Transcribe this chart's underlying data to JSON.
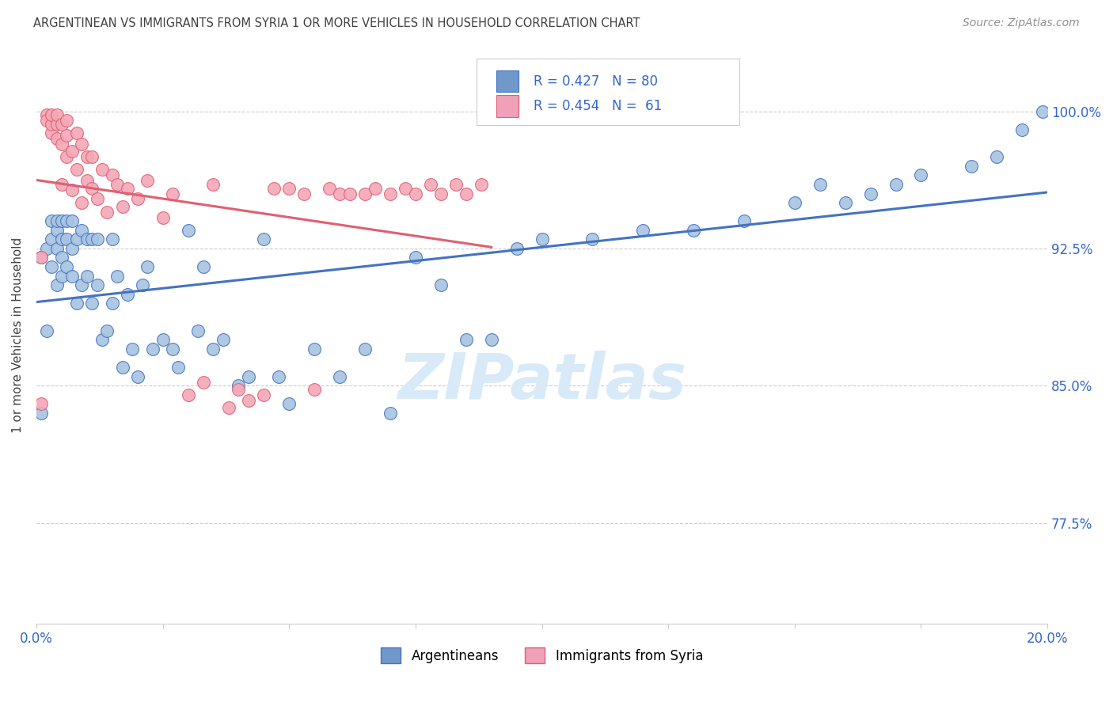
{
  "title": "ARGENTINEAN VS IMMIGRANTS FROM SYRIA 1 OR MORE VEHICLES IN HOUSEHOLD CORRELATION CHART",
  "source": "Source: ZipAtlas.com",
  "ylabel": "1 or more Vehicles in Household",
  "ytick_labels": [
    "100.0%",
    "92.5%",
    "85.0%",
    "77.5%"
  ],
  "ytick_values": [
    1.0,
    0.925,
    0.85,
    0.775
  ],
  "legend_blue_label": "Argentineans",
  "legend_pink_label": "Immigrants from Syria",
  "R_blue": 0.427,
  "N_blue": 80,
  "R_pink": 0.454,
  "N_pink": 61,
  "blue_color": "#a8c4e0",
  "pink_color": "#f4a8b8",
  "trendline_blue": "#4472c4",
  "trendline_pink": "#e06070",
  "legend_box_blue": "#7098c8",
  "legend_box_pink": "#f0a0b8",
  "title_color": "#404040",
  "source_color": "#909090",
  "axis_label_color": "#3366cc",
  "watermark_color": "#d8eaf8",
  "xmin": 0.0,
  "xmax": 0.2,
  "ymin": 0.72,
  "ymax": 1.035,
  "blue_scatter_x": [
    0.001,
    0.001,
    0.002,
    0.002,
    0.003,
    0.003,
    0.003,
    0.004,
    0.004,
    0.004,
    0.004,
    0.005,
    0.005,
    0.005,
    0.005,
    0.006,
    0.006,
    0.006,
    0.007,
    0.007,
    0.007,
    0.008,
    0.008,
    0.009,
    0.009,
    0.01,
    0.01,
    0.011,
    0.011,
    0.012,
    0.012,
    0.013,
    0.014,
    0.015,
    0.015,
    0.016,
    0.017,
    0.018,
    0.019,
    0.02,
    0.021,
    0.022,
    0.023,
    0.025,
    0.027,
    0.028,
    0.03,
    0.032,
    0.033,
    0.035,
    0.037,
    0.04,
    0.042,
    0.045,
    0.048,
    0.05,
    0.055,
    0.06,
    0.065,
    0.07,
    0.075,
    0.08,
    0.085,
    0.09,
    0.095,
    0.1,
    0.11,
    0.12,
    0.13,
    0.14,
    0.15,
    0.155,
    0.16,
    0.165,
    0.17,
    0.175,
    0.185,
    0.19,
    0.195,
    0.199
  ],
  "blue_scatter_y": [
    0.835,
    0.92,
    0.925,
    0.88,
    0.915,
    0.93,
    0.94,
    0.905,
    0.925,
    0.935,
    0.94,
    0.91,
    0.92,
    0.93,
    0.94,
    0.915,
    0.93,
    0.94,
    0.91,
    0.925,
    0.94,
    0.895,
    0.93,
    0.905,
    0.935,
    0.91,
    0.93,
    0.895,
    0.93,
    0.905,
    0.93,
    0.875,
    0.88,
    0.895,
    0.93,
    0.91,
    0.86,
    0.9,
    0.87,
    0.855,
    0.905,
    0.915,
    0.87,
    0.875,
    0.87,
    0.86,
    0.935,
    0.88,
    0.915,
    0.87,
    0.875,
    0.85,
    0.855,
    0.93,
    0.855,
    0.84,
    0.87,
    0.855,
    0.87,
    0.835,
    0.92,
    0.905,
    0.875,
    0.875,
    0.925,
    0.93,
    0.93,
    0.935,
    0.935,
    0.94,
    0.95,
    0.96,
    0.95,
    0.955,
    0.96,
    0.965,
    0.97,
    0.975,
    0.99,
    1.0
  ],
  "pink_scatter_x": [
    0.001,
    0.001,
    0.002,
    0.002,
    0.003,
    0.003,
    0.003,
    0.004,
    0.004,
    0.004,
    0.005,
    0.005,
    0.005,
    0.006,
    0.006,
    0.006,
    0.007,
    0.007,
    0.008,
    0.008,
    0.009,
    0.009,
    0.01,
    0.01,
    0.011,
    0.011,
    0.012,
    0.013,
    0.014,
    0.015,
    0.016,
    0.017,
    0.018,
    0.02,
    0.022,
    0.025,
    0.027,
    0.03,
    0.033,
    0.035,
    0.038,
    0.04,
    0.042,
    0.045,
    0.047,
    0.05,
    0.053,
    0.055,
    0.058,
    0.06,
    0.062,
    0.065,
    0.067,
    0.07,
    0.073,
    0.075,
    0.078,
    0.08,
    0.083,
    0.085,
    0.088
  ],
  "pink_scatter_y": [
    0.84,
    0.92,
    0.998,
    0.995,
    0.988,
    0.993,
    0.998,
    0.985,
    0.993,
    0.998,
    0.96,
    0.982,
    0.993,
    0.975,
    0.987,
    0.995,
    0.957,
    0.978,
    0.968,
    0.988,
    0.95,
    0.982,
    0.962,
    0.975,
    0.958,
    0.975,
    0.952,
    0.968,
    0.945,
    0.965,
    0.96,
    0.948,
    0.958,
    0.952,
    0.962,
    0.942,
    0.955,
    0.845,
    0.852,
    0.96,
    0.838,
    0.848,
    0.842,
    0.845,
    0.958,
    0.958,
    0.955,
    0.848,
    0.958,
    0.955,
    0.955,
    0.955,
    0.958,
    0.955,
    0.958,
    0.955,
    0.96,
    0.955,
    0.96,
    0.955,
    0.96
  ]
}
